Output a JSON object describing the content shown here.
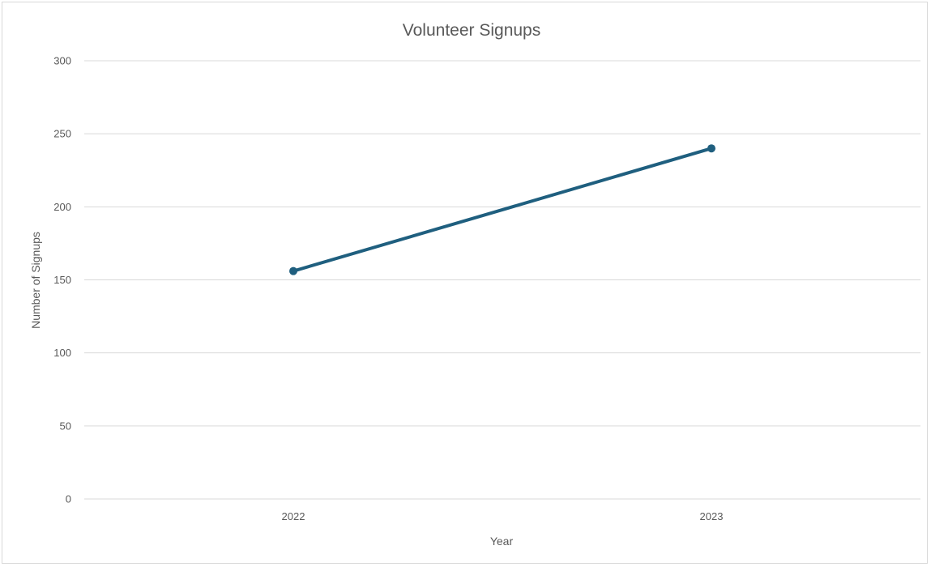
{
  "chart_data": {
    "type": "line",
    "title": "Volunteer Signups",
    "xlabel": "Year",
    "ylabel": "Number of Signups",
    "categories": [
      "2022",
      "2023"
    ],
    "series": [
      {
        "values": [
          156,
          240
        ]
      }
    ],
    "ylim": [
      0,
      300
    ],
    "yticks": [
      0,
      50,
      100,
      150,
      200,
      250,
      300
    ],
    "grid": true,
    "legend": "none",
    "colors": {
      "series": "#1f5f7f",
      "grid": "#d9d9d9",
      "text": "#595959"
    }
  }
}
